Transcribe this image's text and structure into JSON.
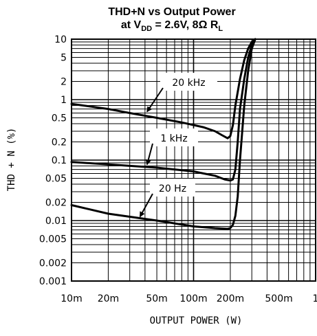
{
  "chart_data": {
    "type": "line",
    "title_line1": "THD+N vs Output Power",
    "title_line2": {
      "prefix": "at V",
      "sub1": "DD",
      "mid": " = 2.6V, 8Ω R",
      "sub2": "L"
    },
    "xlabel": "OUTPUT POWER (W)",
    "ylabel": "THD + N (%)",
    "x_scale": "log",
    "y_scale": "log",
    "xlim": [
      0.01,
      1
    ],
    "ylim": [
      0.001,
      10
    ],
    "x_ticks": [
      {
        "value": 0.01,
        "label": "10m"
      },
      {
        "value": 0.02,
        "label": "20m"
      },
      {
        "value": 0.05,
        "label": "50m"
      },
      {
        "value": 0.1,
        "label": "100m"
      },
      {
        "value": 0.2,
        "label": "200m"
      },
      {
        "value": 0.5,
        "label": "500m"
      },
      {
        "value": 1,
        "label": "1"
      }
    ],
    "y_ticks": [
      {
        "value": 10,
        "label": "10"
      },
      {
        "value": 5,
        "label": "5"
      },
      {
        "value": 2,
        "label": "2"
      },
      {
        "value": 1,
        "label": "1"
      },
      {
        "value": 0.5,
        "label": "0.5"
      },
      {
        "value": 0.2,
        "label": "0.2"
      },
      {
        "value": 0.1,
        "label": "0.1"
      },
      {
        "value": 0.05,
        "label": "0.05"
      },
      {
        "value": 0.02,
        "label": "0.02"
      },
      {
        "value": 0.01,
        "label": "0.01"
      },
      {
        "value": 0.005,
        "label": "0.005"
      },
      {
        "value": 0.002,
        "label": "0.002"
      },
      {
        "value": 0.001,
        "label": "0.001"
      }
    ],
    "grid": true,
    "series": [
      {
        "name": "20 kHz",
        "x": [
          0.01,
          0.02,
          0.03,
          0.05,
          0.08,
          0.12,
          0.15,
          0.17,
          0.19,
          0.2,
          0.21,
          0.22,
          0.24,
          0.26,
          0.28,
          0.3,
          0.32
        ],
        "y": [
          0.85,
          0.7,
          0.6,
          0.5,
          0.42,
          0.35,
          0.3,
          0.26,
          0.23,
          0.25,
          0.38,
          0.8,
          2.2,
          4.5,
          7.0,
          9.0,
          10.0
        ]
      },
      {
        "name": "1 kHz",
        "x": [
          0.01,
          0.02,
          0.05,
          0.1,
          0.15,
          0.18,
          0.2,
          0.21,
          0.22,
          0.23,
          0.24,
          0.26,
          0.28,
          0.3,
          0.32
        ],
        "y": [
          0.093,
          0.085,
          0.075,
          0.065,
          0.055,
          0.048,
          0.046,
          0.048,
          0.07,
          0.2,
          0.7,
          2.2,
          5.0,
          8.0,
          10.0
        ]
      },
      {
        "name": "20 Hz",
        "x": [
          0.01,
          0.02,
          0.05,
          0.1,
          0.15,
          0.19,
          0.2,
          0.21,
          0.22,
          0.23,
          0.24,
          0.26,
          0.28,
          0.3,
          0.32
        ],
        "y": [
          0.018,
          0.013,
          0.01,
          0.008,
          0.0075,
          0.0073,
          0.0075,
          0.0085,
          0.012,
          0.025,
          0.1,
          0.8,
          3.0,
          7.0,
          10.0
        ]
      }
    ],
    "annotations": [
      {
        "series": "20 kHz",
        "text": "20 kHz",
        "x": 0.04,
        "y": 0.6
      },
      {
        "series": "1 kHz",
        "text": "1 kHz",
        "x": 0.04,
        "y": 0.08
      },
      {
        "series": "20 Hz",
        "text": "20 Hz",
        "x": 0.035,
        "y": 0.011
      }
    ]
  }
}
